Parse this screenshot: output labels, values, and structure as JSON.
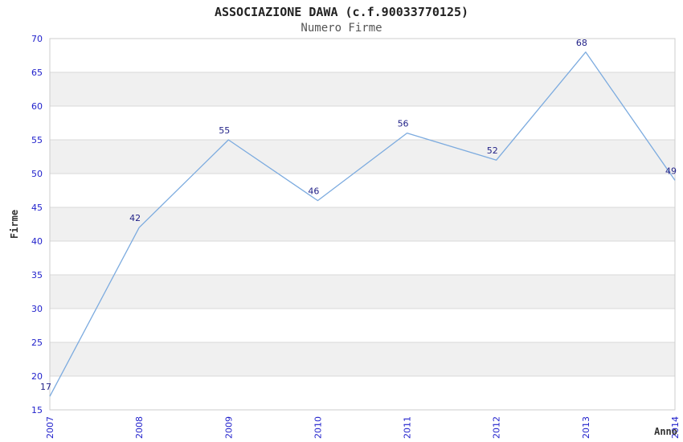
{
  "page": {
    "title": "ASSOCIAZIONE DAWA (c.f.90033770125)",
    "subtitle": "Numero Firme"
  },
  "chart_data": {
    "type": "line",
    "title": "ASSOCIAZIONE DAWA (c.f.90033770125)",
    "subtitle": "Numero Firme",
    "x": [
      "2007",
      "2008",
      "2009",
      "2010",
      "2011",
      "2012",
      "2013",
      "2014"
    ],
    "series": [
      {
        "name": "Numero Firme",
        "values": [
          17,
          42,
          55,
          46,
          56,
          52,
          68,
          49
        ]
      }
    ],
    "xlabel": "Anno",
    "ylabel": "Firme",
    "ylim": [
      15,
      70
    ],
    "ytick_step": 5,
    "grid": "horizontal-bands-alternating",
    "legend": "none",
    "colors": {
      "line": "#7CABDF",
      "point_label": "#222288",
      "tick_label": "#2222CC",
      "band_fill": "#F0F0F0",
      "grid_line": "#D8D8D8",
      "plot_border": "#CCCCCC",
      "title": "#222222",
      "subtitle": "#555555",
      "axis_title": "#333333"
    }
  }
}
